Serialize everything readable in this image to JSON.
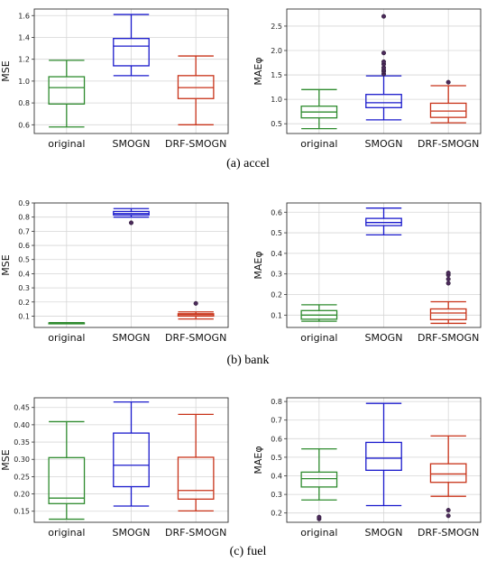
{
  "figure": {
    "captions": [
      "(a) accel",
      "(b) bank",
      "(c) fuel"
    ]
  },
  "chart_data": [
    {
      "type": "box",
      "dataset": "accel",
      "ylabel": "MSE",
      "categories": [
        "original",
        "SMOGN",
        "DRF-SMOGN"
      ],
      "colors": [
        "#2e8b2e",
        "#1a1acc",
        "#c83218"
      ],
      "ylim": [
        0.52,
        1.66
      ],
      "yticks": [
        0.6,
        0.8,
        1.0,
        1.2,
        1.4,
        1.6
      ],
      "ytick_decimals": 1,
      "grid": true,
      "boxes": [
        {
          "whislo": 0.58,
          "q1": 0.79,
          "med": 0.94,
          "q3": 1.04,
          "whishi": 1.19,
          "fliers": []
        },
        {
          "whislo": 1.05,
          "q1": 1.14,
          "med": 1.32,
          "q3": 1.39,
          "whishi": 1.61,
          "fliers": []
        },
        {
          "whislo": 0.6,
          "q1": 0.84,
          "med": 0.94,
          "q3": 1.05,
          "whishi": 1.23,
          "fliers": []
        }
      ]
    },
    {
      "type": "box",
      "dataset": "accel",
      "ylabel": "MAEφ",
      "categories": [
        "original",
        "SMOGN",
        "DRF-SMOGN"
      ],
      "colors": [
        "#2e8b2e",
        "#1a1acc",
        "#c83218"
      ],
      "ylim": [
        0.3,
        2.85
      ],
      "yticks": [
        0.5,
        1.0,
        1.5,
        2.0,
        2.5
      ],
      "ytick_decimals": 1,
      "grid": true,
      "boxes": [
        {
          "whislo": 0.4,
          "q1": 0.62,
          "med": 0.74,
          "q3": 0.86,
          "whishi": 1.2,
          "fliers": []
        },
        {
          "whislo": 0.58,
          "q1": 0.83,
          "med": 0.93,
          "q3": 1.1,
          "whishi": 1.48,
          "fliers": [
            1.52,
            1.57,
            1.6,
            1.65,
            1.72,
            1.77,
            1.95,
            2.7
          ]
        },
        {
          "whislo": 0.52,
          "q1": 0.63,
          "med": 0.76,
          "q3": 0.92,
          "whishi": 1.28,
          "fliers": [
            1.35
          ]
        }
      ]
    },
    {
      "type": "box",
      "dataset": "bank",
      "ylabel": "MSE",
      "categories": [
        "original",
        "SMOGN",
        "DRF-SMOGN"
      ],
      "colors": [
        "#2e8b2e",
        "#1a1acc",
        "#c83218"
      ],
      "ylim": [
        0.02,
        0.9
      ],
      "yticks": [
        0.1,
        0.2,
        0.3,
        0.4,
        0.5,
        0.6,
        0.7,
        0.8,
        0.9
      ],
      "ytick_decimals": 1,
      "grid": true,
      "boxes": [
        {
          "whislo": 0.048,
          "q1": 0.05,
          "med": 0.051,
          "q3": 0.052,
          "whishi": 0.054,
          "fliers": []
        },
        {
          "whislo": 0.8,
          "q1": 0.815,
          "med": 0.825,
          "q3": 0.84,
          "whishi": 0.86,
          "fliers": [
            0.76
          ]
        },
        {
          "whislo": 0.08,
          "q1": 0.1,
          "med": 0.11,
          "q3": 0.117,
          "whishi": 0.13,
          "fliers": [
            0.19
          ]
        }
      ]
    },
    {
      "type": "box",
      "dataset": "bank",
      "ylabel": "MAEφ",
      "categories": [
        "original",
        "SMOGN",
        "DRF-SMOGN"
      ],
      "colors": [
        "#2e8b2e",
        "#1a1acc",
        "#c83218"
      ],
      "ylim": [
        0.04,
        0.645
      ],
      "yticks": [
        0.1,
        0.2,
        0.3,
        0.4,
        0.5,
        0.6
      ],
      "ytick_decimals": 1,
      "grid": true,
      "boxes": [
        {
          "whislo": 0.07,
          "q1": 0.08,
          "med": 0.1,
          "q3": 0.122,
          "whishi": 0.15,
          "fliers": []
        },
        {
          "whislo": 0.49,
          "q1": 0.535,
          "med": 0.55,
          "q3": 0.57,
          "whishi": 0.62,
          "fliers": []
        },
        {
          "whislo": 0.06,
          "q1": 0.078,
          "med": 0.11,
          "q3": 0.13,
          "whishi": 0.165,
          "fliers": [
            0.255,
            0.275,
            0.295,
            0.305
          ]
        }
      ]
    },
    {
      "type": "box",
      "dataset": "fuel",
      "ylabel": "MSE",
      "categories": [
        "original",
        "SMOGN",
        "DRF-SMOGN"
      ],
      "colors": [
        "#2e8b2e",
        "#1a1acc",
        "#c83218"
      ],
      "ylim": [
        0.118,
        0.478
      ],
      "yticks": [
        0.15,
        0.2,
        0.25,
        0.3,
        0.35,
        0.4,
        0.45
      ],
      "ytick_decimals": 2,
      "grid": true,
      "boxes": [
        {
          "whislo": 0.127,
          "q1": 0.172,
          "med": 0.188,
          "q3": 0.305,
          "whishi": 0.409,
          "fliers": []
        },
        {
          "whislo": 0.165,
          "q1": 0.221,
          "med": 0.283,
          "q3": 0.376,
          "whishi": 0.466,
          "fliers": []
        },
        {
          "whislo": 0.151,
          "q1": 0.185,
          "med": 0.21,
          "q3": 0.306,
          "whishi": 0.43,
          "fliers": []
        }
      ]
    },
    {
      "type": "box",
      "dataset": "fuel",
      "ylabel": "MAEφ",
      "categories": [
        "original",
        "SMOGN",
        "DRF-SMOGN"
      ],
      "colors": [
        "#2e8b2e",
        "#1a1acc",
        "#c83218"
      ],
      "ylim": [
        0.15,
        0.82
      ],
      "yticks": [
        0.2,
        0.3,
        0.4,
        0.5,
        0.6,
        0.7,
        0.8
      ],
      "ytick_decimals": 1,
      "grid": true,
      "boxes": [
        {
          "whislo": 0.27,
          "q1": 0.34,
          "med": 0.385,
          "q3": 0.42,
          "whishi": 0.545,
          "fliers": [
            0.168,
            0.178
          ]
        },
        {
          "whislo": 0.24,
          "q1": 0.43,
          "med": 0.495,
          "q3": 0.58,
          "whishi": 0.79,
          "fliers": []
        },
        {
          "whislo": 0.29,
          "q1": 0.365,
          "med": 0.41,
          "q3": 0.465,
          "whishi": 0.615,
          "fliers": [
            0.185,
            0.215
          ]
        }
      ]
    }
  ]
}
